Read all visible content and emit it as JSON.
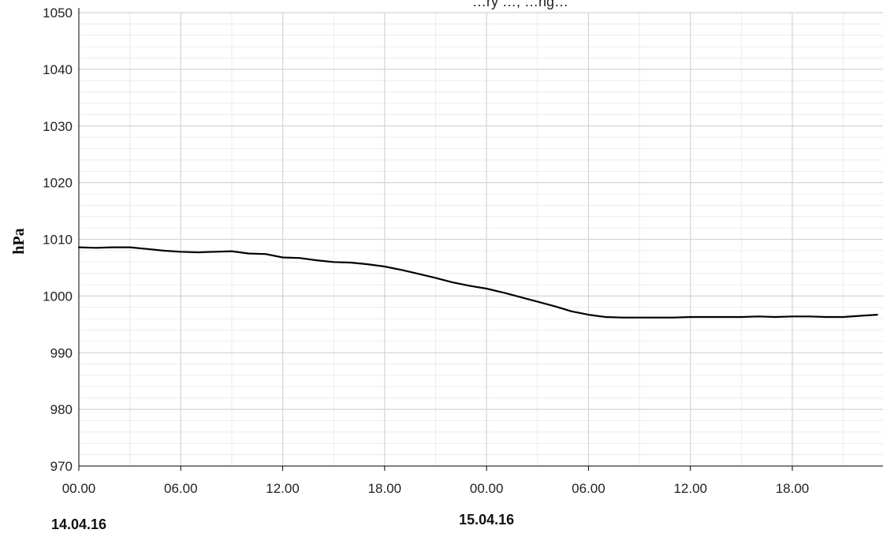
{
  "chart_data": {
    "type": "line",
    "title": "…ry …, …ng…",
    "ylabel": "hPa",
    "xlabel": "",
    "ylim": [
      970,
      1050
    ],
    "yticks": [
      970,
      980,
      990,
      1000,
      1010,
      1020,
      1030,
      1040,
      1050
    ],
    "minor_y_step": 2,
    "grid": true,
    "xticks": [
      {
        "h": 0,
        "label": "00.00"
      },
      {
        "h": 6,
        "label": "06.00"
      },
      {
        "h": 12,
        "label": "12.00"
      },
      {
        "h": 18,
        "label": "18.00"
      },
      {
        "h": 24,
        "label": "00.00"
      },
      {
        "h": 30,
        "label": "06.00"
      },
      {
        "h": 36,
        "label": "12.00"
      },
      {
        "h": 42,
        "label": "18.00"
      }
    ],
    "date_labels": [
      {
        "h": 0,
        "label": "14.04.16"
      },
      {
        "h": 24,
        "label": "15.04.16"
      }
    ],
    "series": [
      {
        "color": "#000000",
        "x": [
          0,
          1,
          2,
          3,
          4,
          5,
          6,
          7,
          8,
          9,
          10,
          11,
          12,
          13,
          14,
          15,
          16,
          17,
          18,
          19,
          20,
          21,
          22,
          23,
          24,
          25,
          26,
          27,
          28,
          29,
          30,
          31,
          32,
          33,
          34,
          35,
          36,
          37,
          38,
          39,
          40,
          41,
          42,
          43,
          44,
          45,
          46,
          47
        ],
        "values": [
          1008.6,
          1008.5,
          1008.6,
          1008.6,
          1008.3,
          1008.0,
          1007.8,
          1007.7,
          1007.8,
          1007.9,
          1007.5,
          1007.4,
          1006.8,
          1006.7,
          1006.3,
          1006.0,
          1005.9,
          1005.6,
          1005.2,
          1004.6,
          1003.9,
          1003.2,
          1002.4,
          1001.8,
          1001.3,
          1000.6,
          999.8,
          999.0,
          998.2,
          997.3,
          996.7,
          996.3,
          996.2,
          996.2,
          996.2,
          996.2,
          996.3,
          996.3,
          996.3,
          996.3,
          996.4,
          996.3,
          996.4,
          996.4,
          996.3,
          996.3,
          996.5,
          996.7
        ]
      }
    ]
  }
}
